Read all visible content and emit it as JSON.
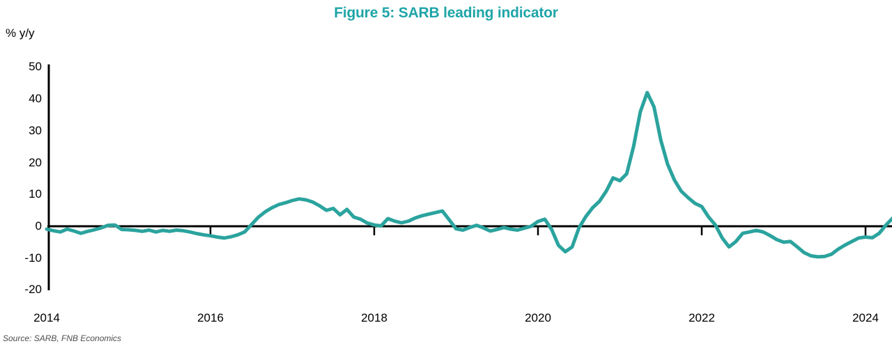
{
  "figure": {
    "title": "Figure 5: SARB leading indicator",
    "unit_label": "% y/y",
    "source": "Source: SARB, FNB Economics"
  },
  "colors": {
    "title": "#1fa5a8",
    "line": "#2ba39e",
    "axis": "#000000",
    "label_text": "#000000",
    "source_text": "#4d4d4d"
  },
  "chart_data": {
    "type": "line",
    "title": "Figure 5: SARB leading indicator",
    "ylabel": "% y/y",
    "xlabel": "",
    "ylim": [
      -20,
      50
    ],
    "y_ticks": [
      50,
      40,
      30,
      20,
      10,
      0,
      -10,
      -20
    ],
    "x_tick_years": [
      2014,
      2016,
      2018,
      2020,
      2022,
      2024
    ],
    "x_tick_labels": [
      "2014",
      "2016",
      "2018",
      "2020",
      "2022",
      "2024"
    ],
    "grid": false,
    "legend_position": "none",
    "zero_line": true,
    "series": [
      {
        "name": "SARB leading indicator, % y/y",
        "start_year": 2014,
        "start_month": 1,
        "frequency": "monthly",
        "values": [
          -0.9,
          -1.4,
          -1.8,
          -0.9,
          -1.5,
          -2.2,
          -1.6,
          -1.1,
          -0.5,
          0.3,
          0.4,
          -1.0,
          -1.1,
          -1.3,
          -1.6,
          -1.2,
          -1.8,
          -1.3,
          -1.6,
          -1.2,
          -1.4,
          -1.8,
          -2.3,
          -2.7,
          -3.0,
          -3.4,
          -3.7,
          -3.3,
          -2.7,
          -1.8,
          0.5,
          2.8,
          4.5,
          5.8,
          6.8,
          7.4,
          8.1,
          8.6,
          8.3,
          7.6,
          6.4,
          5.0,
          5.6,
          3.6,
          5.3,
          2.9,
          2.2,
          1.0,
          0.4,
          0.1,
          2.4,
          1.6,
          1.1,
          1.6,
          2.6,
          3.3,
          3.8,
          4.3,
          4.8,
          2.0,
          -0.8,
          -1.2,
          -0.4,
          0.3,
          -0.5,
          -1.5,
          -1.0,
          -0.4,
          -0.9,
          -1.2,
          -0.6,
          0.0,
          1.5,
          2.2,
          -1.0,
          -6.0,
          -8.0,
          -6.5,
          -0.5,
          3.0,
          5.8,
          7.8,
          11.0,
          15.2,
          14.3,
          16.5,
          25.0,
          36.0,
          42.0,
          37.5,
          27.0,
          19.5,
          14.5,
          11.0,
          9.0,
          7.2,
          6.2,
          2.9,
          0.4,
          -3.7,
          -6.5,
          -4.8,
          -2.2,
          -1.8,
          -1.3,
          -1.8,
          -2.9,
          -4.2,
          -5.0,
          -4.8,
          -6.5,
          -8.3,
          -9.3,
          -9.6,
          -9.5,
          -8.8,
          -7.2,
          -5.9,
          -4.8,
          -3.7,
          -3.4,
          -3.6,
          -2.2,
          0.4,
          2.6
        ]
      }
    ],
    "source": "Source: SARB, FNB Economics"
  }
}
